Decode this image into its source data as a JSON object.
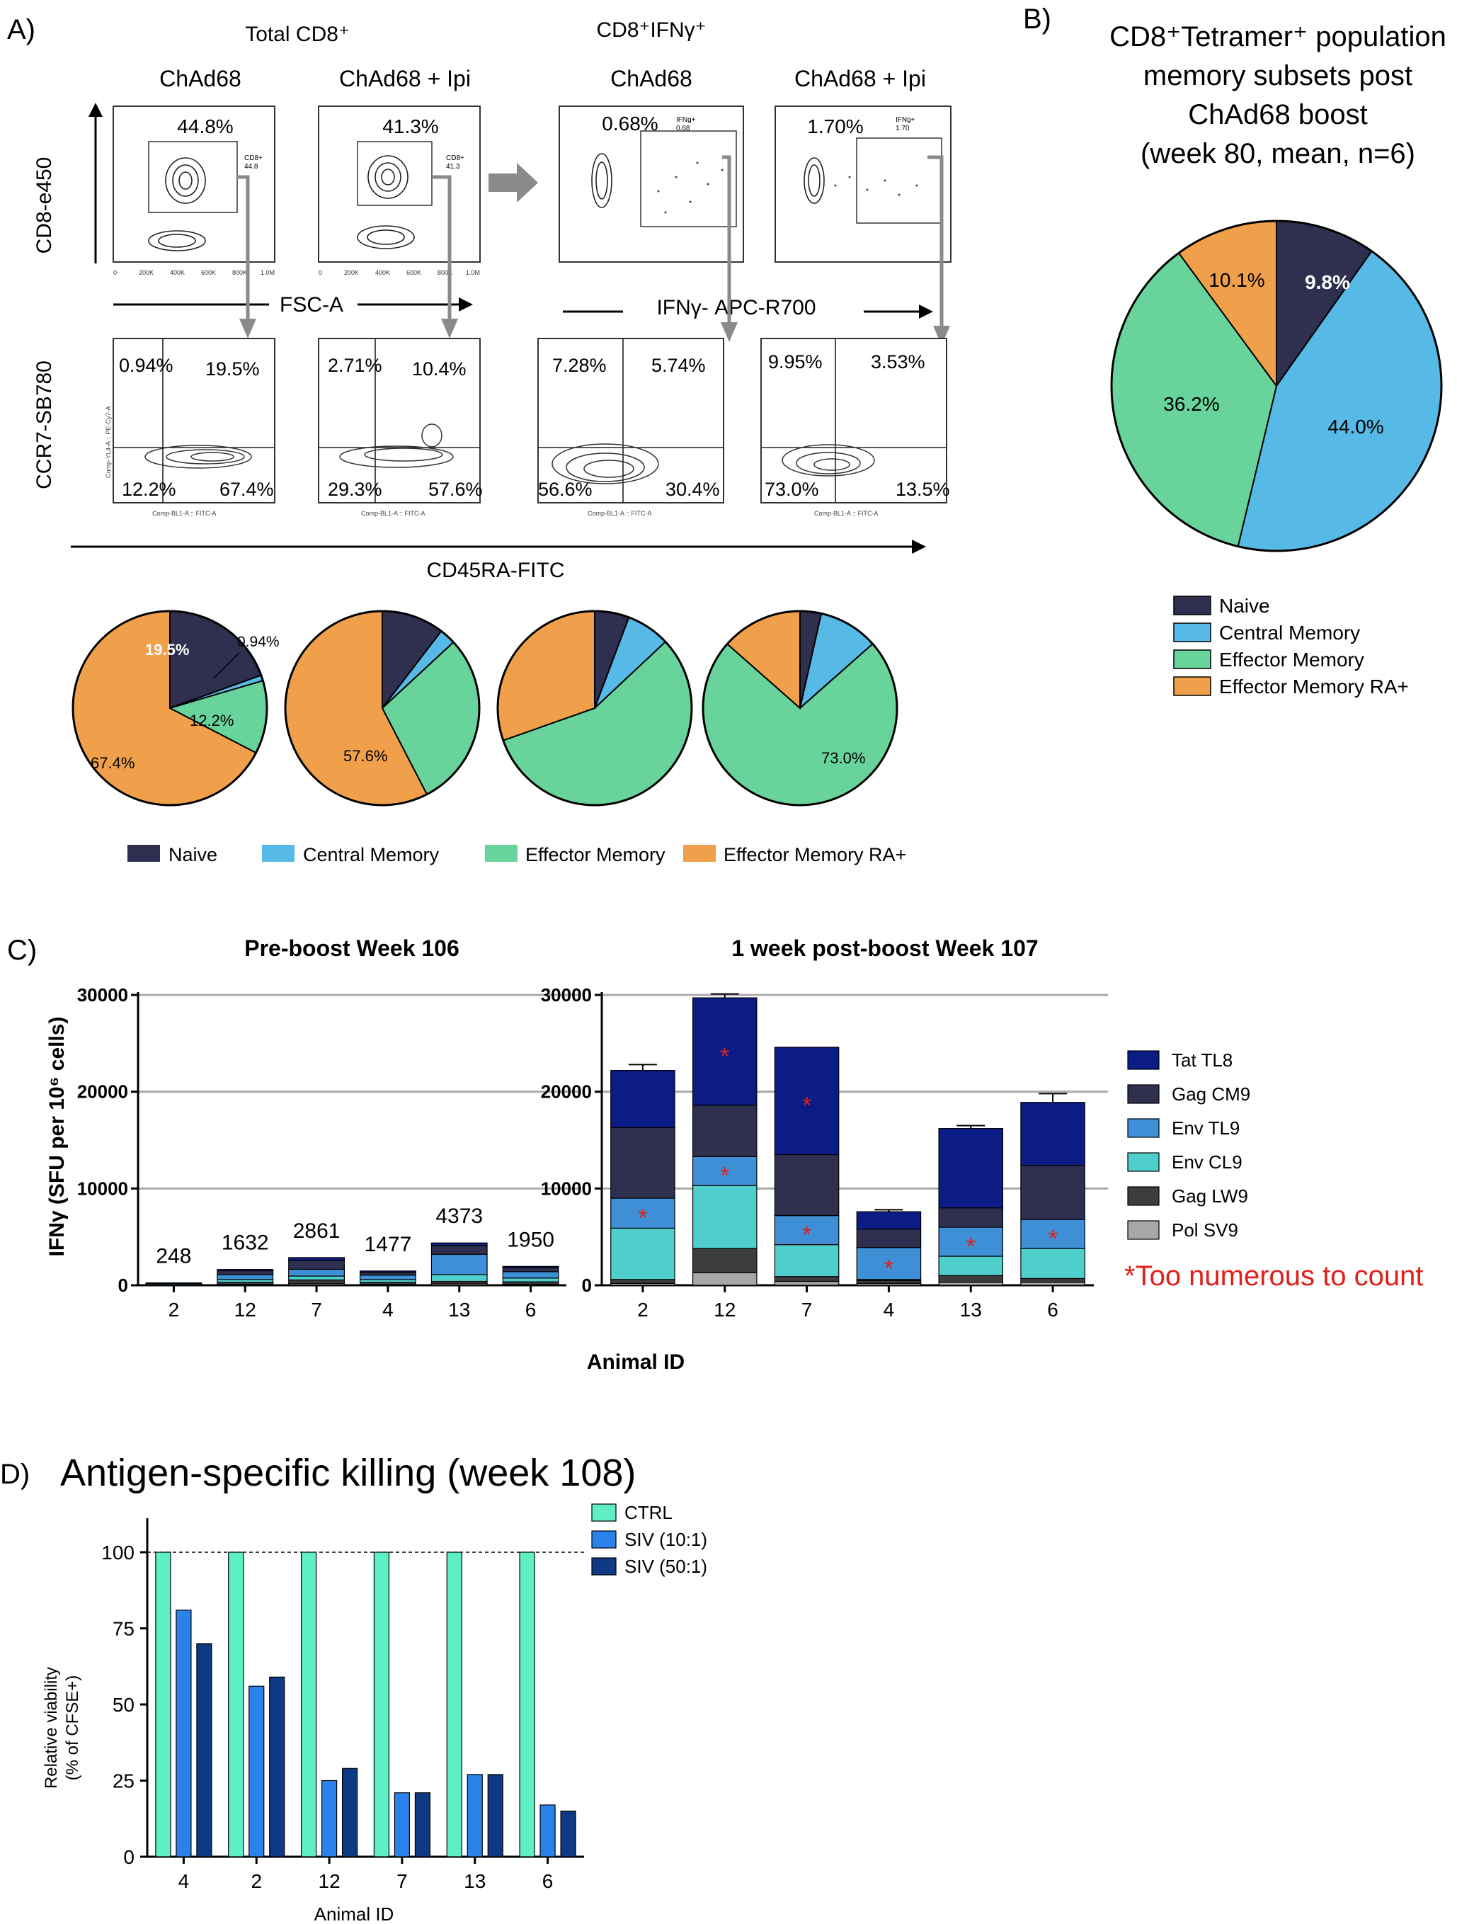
{
  "colors": {
    "naive": "#2f3050",
    "central": "#57b9e5",
    "effector": "#68d49c",
    "emra": "#f0a04a",
    "tat": "#0b1c86",
    "gag_cm9": "#2f3050",
    "env_tl9": "#3e8fd6",
    "env_cl9": "#4fcfcc",
    "gag_lw9": "#3d3d3d",
    "pol_sv9": "#a7a7a7",
    "ctrl": "#5ef0c4",
    "siv10": "#2b82ea",
    "siv50": "#0d3a82",
    "red": "#e0201a",
    "arrow": "#8a8a8a"
  },
  "panel_a": {
    "label": "A)",
    "group1": "Total CD8⁺",
    "group2": "CD8⁺IFNγ⁺",
    "col_titles": [
      "ChAd68",
      "ChAd68 + Ipi",
      "ChAd68",
      "ChAd68 + Ipi"
    ],
    "top_pcts": [
      "44.8%",
      "41.3%",
      "0.68%",
      "1.70%"
    ],
    "gate_labels": [
      [
        "CD8+",
        "44.8"
      ],
      [
        "CD8+",
        "41.3"
      ],
      [
        "IFNg+",
        "0.68"
      ],
      [
        "IFNg+",
        "1.70"
      ]
    ],
    "y_axis_top": "CD8-e450",
    "y_axis_bottom": "CCR7-SB780",
    "x_axis_fsc": "FSC-A",
    "x_axis_ifng": "IFNγ- APC-R700",
    "x_axis_cd45": "CD45RA-FITC",
    "fsc_ticks": [
      "0",
      "200K",
      "400K",
      "600K",
      "800K",
      "1.0M"
    ],
    "bottom_x_tick_label": "Comp-BL1-A :: FITC-A",
    "bottom_y_tick_label": "Comp-YL4-A :: PE-Cy7-A",
    "quadrants": [
      [
        "0.94%",
        "19.5%",
        "12.2%",
        "67.4%"
      ],
      [
        "2.71%",
        "10.4%",
        "29.3%",
        "57.6%"
      ],
      [
        "7.28%",
        "5.74%",
        "56.6%",
        "30.4%"
      ],
      [
        "9.95%",
        "3.53%",
        "73.0%",
        "13.5%"
      ]
    ],
    "pie_labels": {
      "p1_naive": "19.5%",
      "p1_central": "0.94%",
      "p1_effector": "12.2%",
      "p1_emra": "67.4%",
      "p2_emra": "57.6%",
      "p4_effector": "73.0%"
    },
    "legend": [
      "Naive",
      "Central Memory",
      "Effector Memory",
      "Effector Memory RA+"
    ]
  },
  "panel_b": {
    "label": "B)",
    "title_lines": [
      "CD8⁺Tetramer⁺ population",
      "memory subsets post",
      "ChAd68 boost",
      "(week 80, mean, n=6)"
    ],
    "slice_labels": [
      "9.8%",
      "44.0%",
      "36.2%",
      "10.1%"
    ],
    "legend": [
      "Naive",
      "Central Memory",
      "Effector Memory",
      "Effector Memory RA+"
    ]
  },
  "panel_c": {
    "label": "C)",
    "left_title": "Pre-boost Week 106",
    "right_title": "1 week post-boost Week 107",
    "y_axis_label": "IFNγ (SFU per 10⁶ cells)",
    "x_axis_label": "Animal ID",
    "y_ticks": [
      "0",
      "10000",
      "20000",
      "30000"
    ],
    "legend": [
      "Tat TL8",
      "Gag CM9",
      "Env TL9",
      "Env CL9",
      "Gag LW9",
      "Pol SV9"
    ],
    "note": "*Too numerous to count",
    "star": "*"
  },
  "panel_d": {
    "label": "D)",
    "title": "Antigen-specific killing (week 108)",
    "y_axis_label_1": "Relative viability",
    "y_axis_label_2": "(% of CFSE+)",
    "x_axis_label": "Animal ID",
    "y_ticks": [
      "0",
      "25",
      "50",
      "75",
      "100"
    ],
    "legend": [
      "CTRL",
      "SIV (10:1)",
      "SIV (50:1)"
    ]
  },
  "chart_data": [
    {
      "type": "pie",
      "title": "Total CD8+ ChAd68",
      "categories": [
        "Naive",
        "Central Memory",
        "Effector Memory",
        "Effector Memory RA+"
      ],
      "values": [
        19.5,
        0.94,
        12.2,
        67.4
      ]
    },
    {
      "type": "pie",
      "title": "Total CD8+ ChAd68 + Ipi",
      "categories": [
        "Naive",
        "Central Memory",
        "Effector Memory",
        "Effector Memory RA+"
      ],
      "values": [
        10.4,
        2.71,
        29.3,
        57.6
      ]
    },
    {
      "type": "pie",
      "title": "CD8+IFNγ+ ChAd68",
      "categories": [
        "Naive",
        "Central Memory",
        "Effector Memory",
        "Effector Memory RA+"
      ],
      "values": [
        5.74,
        7.28,
        56.6,
        30.4
      ]
    },
    {
      "type": "pie",
      "title": "CD8+IFNγ+ ChAd68 + Ipi",
      "categories": [
        "Naive",
        "Central Memory",
        "Effector Memory",
        "Effector Memory RA+"
      ],
      "values": [
        3.53,
        9.95,
        73.0,
        13.5
      ]
    },
    {
      "type": "pie",
      "title": "CD8+Tetramer+ population memory subsets post ChAd68 boost (week 80, mean, n=6)",
      "categories": [
        "Naive",
        "Central Memory",
        "Effector Memory",
        "Effector Memory RA+"
      ],
      "values": [
        9.8,
        44.0,
        36.2,
        10.1
      ]
    },
    {
      "type": "bar",
      "stacked": true,
      "title": "Pre-boost Week 106",
      "xlabel": "Animal ID",
      "ylabel": "IFNγ (SFU per 10^6 cells)",
      "ylim": [
        0,
        30000
      ],
      "categories": [
        "2",
        "12",
        "7",
        "4",
        "13",
        "6"
      ],
      "totals": [
        248,
        1632,
        2861,
        1477,
        4373,
        1950
      ],
      "total_labels": [
        "248",
        "1632",
        "2861",
        "1477",
        "4373",
        "1950"
      ],
      "series": [
        {
          "name": "Pol SV9",
          "values": [
            0,
            100,
            150,
            100,
            150,
            100
          ]
        },
        {
          "name": "Gag LW9",
          "values": [
            0,
            200,
            400,
            200,
            250,
            250
          ]
        },
        {
          "name": "Env CL9",
          "values": [
            0,
            300,
            400,
            300,
            700,
            400
          ]
        },
        {
          "name": "Env TL9",
          "values": [
            120,
            500,
            700,
            450,
            2100,
            650
          ]
        },
        {
          "name": "Gag CM9",
          "values": [
            80,
            400,
            900,
            300,
            900,
            400
          ]
        },
        {
          "name": "Tat TL8",
          "values": [
            48,
            132,
            311,
            127,
            273,
            150
          ]
        }
      ]
    },
    {
      "type": "bar",
      "stacked": true,
      "title": "1 week post-boost Week 107",
      "xlabel": "Animal ID",
      "ylabel": "IFNγ (SFU per 10^6 cells)",
      "ylim": [
        0,
        30000
      ],
      "categories": [
        "2",
        "12",
        "7",
        "4",
        "13",
        "6"
      ],
      "series": [
        {
          "name": "Pol SV9",
          "values": [
            200,
            1300,
            400,
            200,
            300,
            300
          ]
        },
        {
          "name": "Gag LW9",
          "values": [
            400,
            2500,
            500,
            300,
            700,
            400
          ]
        },
        {
          "name": "Env CL9",
          "values": [
            5300,
            6500,
            3300,
            100,
            2000,
            3100
          ]
        },
        {
          "name": "Env TL9",
          "values": [
            3100,
            3000,
            3000,
            3300,
            3000,
            3000
          ]
        },
        {
          "name": "Gag CM9",
          "values": [
            7300,
            5300,
            6300,
            1900,
            2000,
            5600
          ]
        },
        {
          "name": "Tat TL8",
          "values": [
            5900,
            11100,
            11100,
            1800,
            8200,
            6500
          ]
        }
      ],
      "too_numerous": [
        [
          true,
          false,
          false,
          false,
          false,
          false
        ],
        [
          true,
          true,
          true,
          false,
          false,
          false
        ],
        [
          true,
          false,
          true,
          false,
          false,
          false
        ],
        [
          false,
          false,
          true,
          false,
          false,
          false
        ],
        [
          false,
          false,
          true,
          false,
          false,
          false
        ],
        [
          false,
          false,
          true,
          false,
          false,
          false
        ]
      ],
      "error": [
        600,
        400,
        0,
        200,
        300,
        900
      ],
      "note": "*Too numerous to count"
    },
    {
      "type": "bar",
      "title": "Antigen-specific killing (week 108)",
      "xlabel": "Animal ID",
      "ylabel": "Relative viability (% of CFSE+)",
      "ylim": [
        0,
        110
      ],
      "reference_line": 100,
      "categories": [
        "4",
        "2",
        "12",
        "7",
        "13",
        "6"
      ],
      "series": [
        {
          "name": "CTRL",
          "values": [
            100,
            100,
            100,
            100,
            100,
            100
          ]
        },
        {
          "name": "SIV (10:1)",
          "values": [
            81,
            56,
            25,
            21,
            27,
            17
          ]
        },
        {
          "name": "SIV (50:1)",
          "values": [
            70,
            59,
            29,
            21,
            27,
            15
          ]
        }
      ]
    }
  ]
}
